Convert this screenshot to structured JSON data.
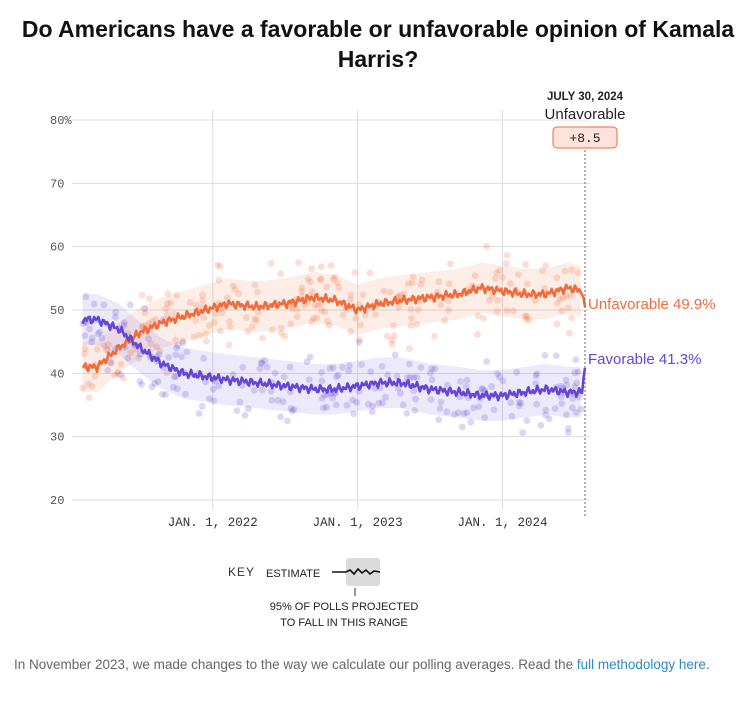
{
  "title": "Do Americans have a favorable or unfavorable opinion of Kamala Harris?",
  "chart_data": {
    "type": "line",
    "title": "Do Americans have a favorable or unfavorable opinion of Kamala Harris?",
    "xlabel": "",
    "ylabel": "",
    "ylim": [
      20,
      80
    ],
    "y_ticks": [
      "80%",
      "70",
      "60",
      "50",
      "40",
      "30",
      "20"
    ],
    "x_ticks": [
      "JAN. 1, 2022",
      "JAN. 1, 2023",
      "JAN. 1, 2024"
    ],
    "x": [
      2021.1,
      2021.2,
      2021.35,
      2021.5,
      2021.65,
      2021.8,
      2021.95,
      2022.1,
      2022.3,
      2022.5,
      2022.7,
      2022.85,
      2023.0,
      2023.15,
      2023.3,
      2023.5,
      2023.7,
      2023.85,
      2024.0,
      2024.15,
      2024.3,
      2024.45,
      2024.55,
      2024.57
    ],
    "series": [
      {
        "name": "Unfavorable",
        "color": "#f26b3a",
        "values": [
          41,
          41,
          44,
          46.5,
          48,
          49,
          50,
          51,
          50.5,
          51,
          52,
          51.5,
          50,
          51,
          51.5,
          52,
          52.5,
          53.5,
          53,
          52.5,
          52.5,
          53.5,
          53,
          49.9
        ]
      },
      {
        "name": "Favorable",
        "color": "#6446d8",
        "values": [
          48.5,
          48.5,
          47,
          44,
          41.5,
          40,
          39.5,
          39,
          38.5,
          38,
          37.5,
          37.5,
          38,
          38.5,
          38.5,
          37.5,
          37,
          36.5,
          36.5,
          37,
          37.5,
          37,
          37,
          41.3
        ]
      }
    ],
    "end_labels": [
      "Unfavorable 49.9%",
      "Favorable 41.3%"
    ],
    "annotation": {
      "date": "JULY 30, 2024",
      "label": "Unfavorable",
      "value": "+8.5"
    }
  },
  "key": {
    "title": "KEY",
    "estimate": "ESTIMATE",
    "range_line1": "95% OF POLLS PROJECTED",
    "range_line2": "TO FALL IN THIS RANGE"
  },
  "footnote": {
    "text": "In November 2023, we made changes to the way we calculate our polling averages. Read the ",
    "link": "full methodology here",
    "end": "."
  },
  "colors": {
    "unfavorable": "#f26b3a",
    "favorable": "#6446d8"
  }
}
